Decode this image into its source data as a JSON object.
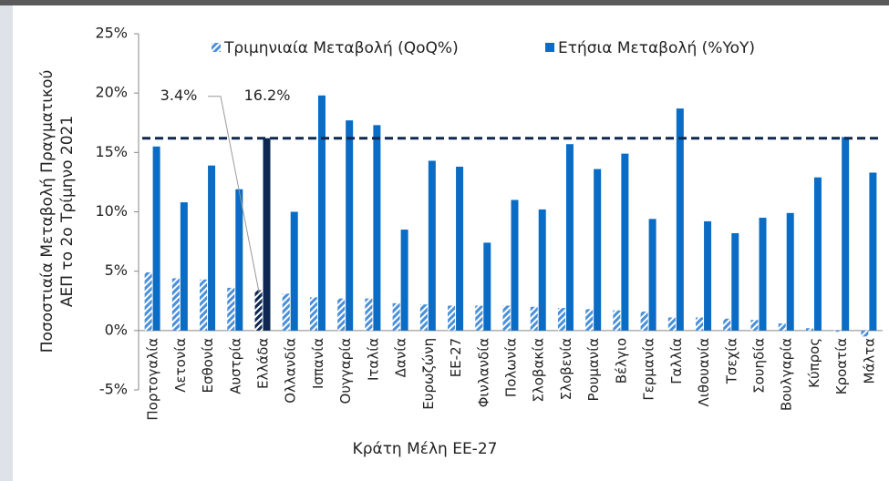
{
  "chart_data": {
    "type": "bar",
    "y_label": [
      "Ποσοστιαία Μεταβολή Πραγματικού",
      "ΑΕΠ το 2ο Τρίμηνο 2021"
    ],
    "x_label": "Κράτη Μέλη ΕΕ-27",
    "categories": [
      "Πορτογαλία",
      "Λετονία",
      "Εσθονία",
      "Αυστρία",
      "Ελλάδα",
      "Ολλανδία",
      "Ισπανία",
      "Ουγγαρία",
      "Ιταλία",
      "Δανία",
      "Ευρωζώνη",
      "ΕΕ-27",
      "Φινλανδία",
      "Πολωνία",
      "Σλοβακία",
      "Σλοβενία",
      "Ρουμανία",
      "Βέλγιο",
      "Γερμανία",
      "Γαλλία",
      "Λιθουανία",
      "Τσεχία",
      "Σουηδία",
      "Βουλγαρία",
      "Κύπρος",
      "Κροατία",
      "Μάλτα"
    ],
    "series": [
      {
        "name": "Τριμηνιαία Μεταβολή (QoQ%)",
        "color": "#4a90d9",
        "pattern": "hatch",
        "values": [
          4.9,
          4.4,
          4.3,
          3.6,
          3.4,
          3.1,
          2.8,
          2.7,
          2.7,
          2.3,
          2.2,
          2.1,
          2.1,
          2.1,
          2.0,
          1.9,
          1.8,
          1.7,
          1.6,
          1.1,
          1.1,
          1.0,
          0.9,
          0.6,
          0.2,
          -0.1,
          -0.5
        ]
      },
      {
        "name": "Ετήσια Μεταβολή (%YoY)",
        "color": "#0a6cc4",
        "pattern": "solid",
        "values": [
          15.5,
          10.8,
          13.9,
          11.9,
          16.2,
          10.0,
          19.8,
          17.7,
          17.3,
          8.5,
          14.3,
          13.8,
          7.4,
          11.0,
          10.2,
          15.7,
          13.6,
          14.9,
          9.4,
          18.7,
          9.2,
          8.2,
          9.5,
          9.9,
          12.9,
          16.3,
          13.3
        ]
      }
    ],
    "highlight": {
      "category": "Ελλάδα",
      "color": "#0d2750",
      "labels": [
        "3.4%",
        "16.2%"
      ],
      "reference_line": "dashed"
    },
    "ylim": [
      -5,
      25
    ],
    "yticks": [
      {
        "value": -5,
        "label": "-5%"
      },
      {
        "value": 0,
        "label": "0%"
      },
      {
        "value": 5,
        "label": "5%"
      },
      {
        "value": 10,
        "label": "10%"
      },
      {
        "value": 15,
        "label": "15%"
      },
      {
        "value": 20,
        "label": "20%"
      },
      {
        "value": 25,
        "label": "25%"
      }
    ],
    "grid": false,
    "legend": "top"
  }
}
